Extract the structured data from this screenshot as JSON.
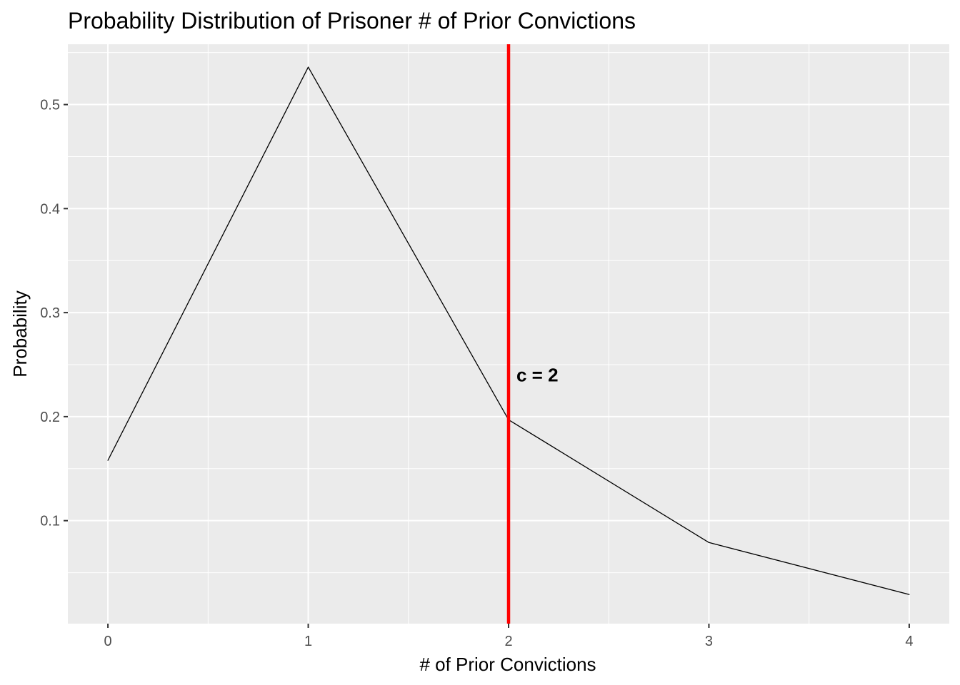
{
  "chart_data": {
    "type": "line",
    "title": "Probability Distribution of Prisoner # of Prior Convictions",
    "xlabel": "# of Prior Convictions",
    "ylabel": "Probability",
    "x": [
      0,
      1,
      2,
      3,
      4
    ],
    "series": [
      {
        "values": [
          0.158,
          0.536,
          0.197,
          0.079,
          0.029
        ]
      }
    ],
    "xlim": [
      -0.2,
      4.2
    ],
    "ylim": [
      0.001,
      0.558
    ],
    "x_ticks": [
      0,
      1,
      2,
      3,
      4
    ],
    "y_ticks": [
      0.1,
      0.2,
      0.3,
      0.4,
      0.5
    ],
    "x_tick_labels": [
      "0",
      "1",
      "2",
      "3",
      "4"
    ],
    "y_tick_labels": [
      "0.1",
      "0.2",
      "0.3",
      "0.4",
      "0.5"
    ],
    "grid": true,
    "legend": "none",
    "vline": {
      "x": 2,
      "color": "#ff0000"
    },
    "annotation": {
      "x": 2,
      "y": 0.24,
      "text": "c = 2"
    },
    "colors": {
      "panel": "#ebebeb",
      "grid": "#ffffff",
      "line": "#000000",
      "tick_text": "#4d4d4d",
      "tick_mark": "#333333"
    }
  }
}
